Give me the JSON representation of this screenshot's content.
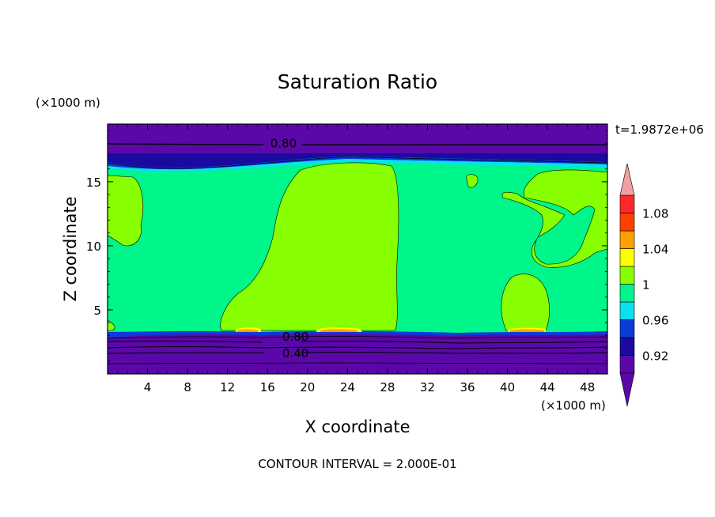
{
  "chart_data": {
    "type": "heatmap",
    "title": "Saturation Ratio",
    "xlabel": "X coordinate",
    "ylabel": "Z coordinate",
    "x_unit": "(×1000 m)",
    "y_unit": "(×1000 m)",
    "xlim": [
      0,
      50
    ],
    "ylim": [
      0,
      19.5
    ],
    "x_ticks": [
      4,
      8,
      12,
      16,
      20,
      24,
      28,
      32,
      36,
      40,
      44,
      48
    ],
    "y_ticks": [
      5,
      10,
      15
    ],
    "time_label": "t=1.9872e+06",
    "footer": "CONTOUR INTERVAL = 2.000E-01",
    "contour_labels": [
      {
        "text": "0.80",
        "x": 17.6,
        "z": 18.0
      },
      {
        "text": "0.80",
        "x": 18.8,
        "z": 2.9
      },
      {
        "text": "0.40",
        "x": 18.8,
        "z": 1.6
      }
    ],
    "colorbar": {
      "levels": [
        0.92,
        0.94,
        0.96,
        0.98,
        1.0,
        1.02,
        1.04,
        1.06,
        1.08,
        1.1
      ],
      "tick_labels": [
        "0.92",
        "0.96",
        "1",
        "1.04",
        "1.08"
      ],
      "tick_levels": [
        0.92,
        0.96,
        1.0,
        1.04,
        1.08
      ],
      "colors": [
        "#5a08a8",
        "#1a0aa0",
        "#0a3cd8",
        "#0ae0f0",
        "#00f58a",
        "#88ff00",
        "#ffff00",
        "#ffa000",
        "#ff4000",
        "#ff2828"
      ],
      "under_color": "#5a08a8",
      "over_color": "#f0a0a0"
    },
    "colors": {
      "background": "#00f58a",
      "dry": "#5a08a8",
      "near_saturated": "#88ff00",
      "transition_dark": "#1a0aa0",
      "transition_blue": "#0a3cd8",
      "transition_cyan": "#0ae0f0",
      "supersaturated": "#ffff00",
      "peak": "#ffa000"
    }
  }
}
